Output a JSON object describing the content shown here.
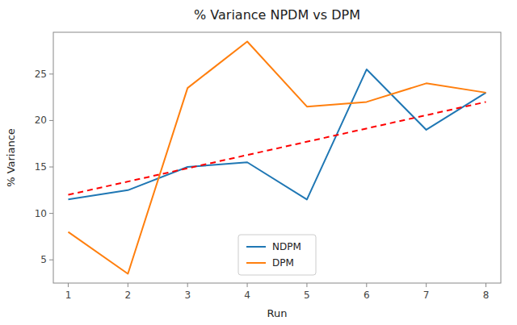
{
  "chart_data": {
    "type": "line",
    "title": "% Variance NPDM vs DPM",
    "x_label": "Run",
    "y_label": "% Variance",
    "x": [
      1,
      2,
      3,
      4,
      5,
      6,
      7,
      8
    ],
    "series": [
      {
        "name": "NDPM",
        "color": "#1f77b4",
        "values": [
          11.5,
          12.5,
          15.0,
          15.5,
          11.5,
          25.5,
          19.0,
          23.0
        ]
      },
      {
        "name": "DPM",
        "color": "#ff7f0e",
        "values": [
          8.0,
          3.5,
          23.5,
          28.5,
          21.5,
          22.0,
          24.0,
          23.0
        ]
      },
      {
        "color": "red",
        "line_style": "dashed",
        "x": [
          1,
          8
        ],
        "values": [
          12.0,
          22.0
        ]
      }
    ],
    "xlim": [
      0.75,
      8.25
    ],
    "ylim": [
      2.5,
      29.5
    ],
    "xticks": [
      1,
      2,
      3,
      4,
      5,
      6,
      7,
      8
    ],
    "yticks": [
      5,
      10,
      15,
      20,
      25
    ],
    "grid": false,
    "legend": "lower center"
  }
}
